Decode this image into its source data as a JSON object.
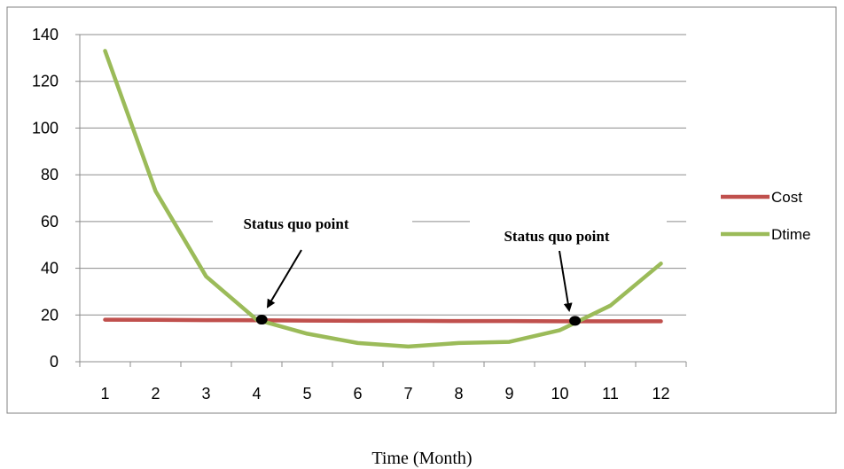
{
  "chart_data": {
    "type": "line",
    "x": [
      1,
      2,
      3,
      4,
      5,
      6,
      7,
      8,
      9,
      10,
      11,
      12
    ],
    "categories": [
      "1",
      "2",
      "3",
      "4",
      "5",
      "6",
      "7",
      "8",
      "9",
      "10",
      "11",
      "12"
    ],
    "series": [
      {
        "name": "Cost",
        "color": "#c0504d",
        "values": [
          18,
          17.9,
          17.8,
          17.7,
          17.6,
          17.5,
          17.5,
          17.4,
          17.4,
          17.3,
          17.3,
          17.3
        ]
      },
      {
        "name": "Dtime",
        "color": "#9bbb59",
        "values": [
          133,
          73,
          36.5,
          18,
          12,
          8,
          6.5,
          8,
          8.5,
          13.5,
          24,
          42
        ]
      }
    ],
    "xlabel": "Time (Month)",
    "ylabel": "",
    "ylim": [
      0,
      140
    ],
    "yticks": [
      0,
      20,
      40,
      60,
      80,
      100,
      120,
      140
    ],
    "grid": true,
    "legend_position": "right",
    "annotations": [
      {
        "text": "Status quo point",
        "x": 4.1,
        "y": 18
      },
      {
        "text": "Status quo point",
        "x": 10.3,
        "y": 17.5
      }
    ]
  }
}
